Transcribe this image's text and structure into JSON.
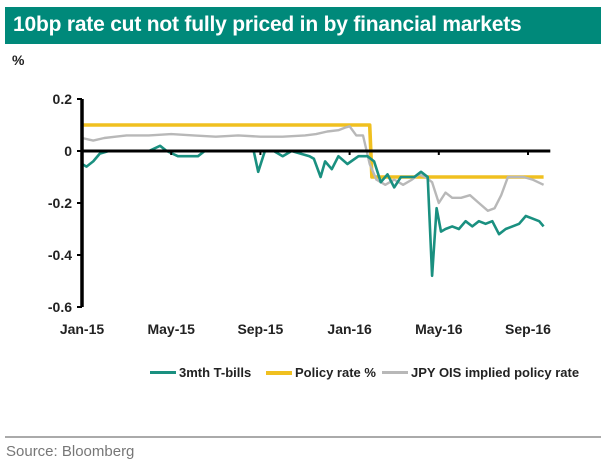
{
  "title": "10bp rate cut not fully priced in by financial markets",
  "unit": "%",
  "source": "Source: Bloomberg",
  "colors": {
    "title_bg": "#00897a",
    "tbills": "#1a9080",
    "policy": "#f0c020",
    "ois": "#b8b8b8",
    "axis": "#000000"
  },
  "chart_data": {
    "type": "line",
    "title": "10bp rate cut not fully priced in by financial markets",
    "ylabel": "%",
    "xlabel": "",
    "ylim": [
      -0.6,
      0.2
    ],
    "xlim": [
      0,
      21
    ],
    "x_unit": "months since Jan-15",
    "yticks": [
      0.2,
      0,
      -0.2,
      -0.4,
      -0.6
    ],
    "ytick_labels": [
      "0.2",
      "0",
      "-0.2",
      "-0.4",
      "-0.6"
    ],
    "xticks": [
      0,
      4,
      8,
      12,
      16,
      20
    ],
    "xtick_labels": [
      "Jan-15",
      "May-15",
      "Sep-15",
      "Jan-16",
      "May-16",
      "Sep-16"
    ],
    "grid": false,
    "legend_position": "bottom",
    "series": [
      {
        "name": "3mth T-bills",
        "x": [
          0,
          0.2,
          0.5,
          0.8,
          1.2,
          2,
          3,
          3.5,
          3.8,
          4.3,
          4.9,
          5.2,
          5.5,
          6.5,
          7,
          7.7,
          7.9,
          8.2,
          8.6,
          9,
          9.4,
          9.8,
          10.2,
          10.4,
          10.7,
          10.9,
          11.2,
          11.5,
          11.9,
          12.4,
          12.8,
          13.1,
          13.4,
          13.7,
          14,
          14.3,
          14.6,
          14.9,
          15.2,
          15.5,
          15.7,
          15.9,
          16.1,
          16.3,
          16.6,
          16.9,
          17.2,
          17.5,
          17.8,
          18.1,
          18.4,
          18.7,
          19,
          19.3,
          19.6,
          19.9,
          20.2,
          20.5,
          20.7
        ],
        "values": [
          -0.05,
          -0.06,
          -0.04,
          -0.01,
          0.0,
          0.0,
          0.0,
          0.02,
          0.0,
          -0.02,
          -0.02,
          -0.02,
          0.0,
          0.0,
          0.0,
          0.0,
          -0.08,
          0.0,
          0.0,
          -0.02,
          0.0,
          -0.01,
          -0.02,
          -0.03,
          -0.1,
          -0.04,
          -0.07,
          -0.02,
          -0.05,
          -0.02,
          -0.02,
          -0.04,
          -0.12,
          -0.09,
          -0.14,
          -0.1,
          -0.1,
          -0.1,
          -0.08,
          -0.1,
          -0.48,
          -0.22,
          -0.31,
          -0.3,
          -0.29,
          -0.3,
          -0.27,
          -0.29,
          -0.27,
          -0.28,
          -0.27,
          -0.32,
          -0.3,
          -0.29,
          -0.28,
          -0.25,
          -0.26,
          -0.27,
          -0.29
        ]
      },
      {
        "name": "Policy rate %",
        "x": [
          0,
          12.9,
          13.0,
          20.7
        ],
        "values": [
          0.1,
          0.1,
          -0.1,
          -0.1
        ]
      },
      {
        "name": "JPY OIS implied policy rate",
        "x": [
          0,
          0.5,
          1,
          1.5,
          2,
          3,
          4,
          5,
          6,
          7,
          8,
          9,
          10,
          10.5,
          11,
          11.5,
          11.8,
          12.0,
          12.3,
          12.6,
          12.9,
          13.2,
          13.6,
          14,
          14.4,
          14.8,
          15.1,
          15.4,
          15.7,
          16.0,
          16.3,
          16.6,
          17,
          17.4,
          17.8,
          18.2,
          18.5,
          18.8,
          19.1,
          19.4,
          19.8,
          20.2,
          20.7
        ],
        "values": [
          0.05,
          0.04,
          0.05,
          0.055,
          0.06,
          0.06,
          0.065,
          0.06,
          0.055,
          0.06,
          0.055,
          0.055,
          0.06,
          0.065,
          0.075,
          0.08,
          0.09,
          0.095,
          0.06,
          0.06,
          -0.05,
          -0.11,
          -0.13,
          -0.11,
          -0.13,
          -0.11,
          -0.09,
          -0.1,
          -0.12,
          -0.2,
          -0.16,
          -0.18,
          -0.18,
          -0.17,
          -0.2,
          -0.23,
          -0.22,
          -0.17,
          -0.1,
          -0.1,
          -0.1,
          -0.11,
          -0.13
        ]
      }
    ]
  }
}
